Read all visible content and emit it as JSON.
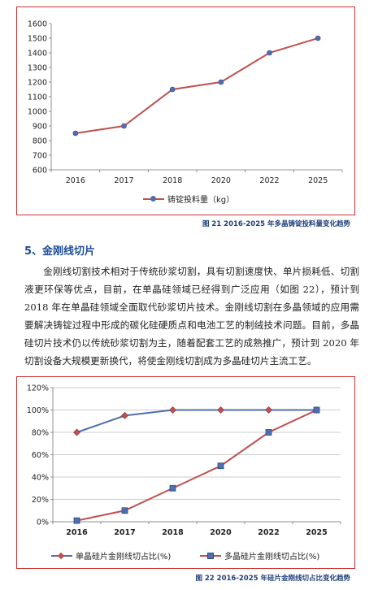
{
  "figure21": {
    "caption": "图 21 2016-2025 年多晶铸锭投料量变化趋势",
    "chart_data": {
      "type": "line",
      "categories": [
        "2016",
        "2017",
        "2018",
        "2020",
        "2022",
        "2025"
      ],
      "series": [
        {
          "name": "铸锭投料量（kg）",
          "values": [
            850,
            900,
            1150,
            1200,
            1400,
            1500
          ],
          "color": "#c0504d",
          "marker_color": "#4f6fb0"
        }
      ],
      "ylim": [
        600,
        1600
      ],
      "yticks": [
        "600",
        "700",
        "800",
        "900",
        "1000",
        "1100",
        "1200",
        "1300",
        "1400",
        "1500",
        "1600"
      ],
      "grid": false,
      "legend": "bottom"
    }
  },
  "section": {
    "title": "5、金刚线切片",
    "paragraph": "金刚线切割技术相对于传统砂浆切割，具有切割速度快、单片损耗低、切割液更环保等优点，目前，在单晶硅领域已经得到广泛应用（如图 22），预计到 2018 年在单晶硅领域全面取代砂浆切片技术。金刚线切割在多晶领域的应用需要解决铸锭过程中形成的碳化硅硬质点和电池工艺的制绒技术问题。目前，多晶硅切片技术仍以传统砂浆切割为主，随着配套工艺的成熟推广，预计到 2020 年切割设备大规模更新换代，将使金刚线切割成为多晶硅切片主流工艺。"
  },
  "figure22": {
    "caption": "图 22 2016-2025 年硅片金刚线切占比变化趋势",
    "chart_data": {
      "type": "line",
      "categories": [
        "2016",
        "2017",
        "2018",
        "2020",
        "2022",
        "2025"
      ],
      "series": [
        {
          "name": "单晶硅片金刚线切占比(%)",
          "values": [
            80,
            95,
            100,
            100,
            100,
            100
          ],
          "color": "#4f6fb0",
          "marker": "diamond",
          "marker_color": "#c0504d"
        },
        {
          "name": "多晶硅片金刚线切占比(%)",
          "values": [
            1,
            10,
            30,
            50,
            80,
            100
          ],
          "color": "#c0504d",
          "marker": "square",
          "marker_color": "#4f6fb0"
        }
      ],
      "ylim": [
        0,
        120
      ],
      "yticks": [
        "0%",
        "20%",
        "40%",
        "60%",
        "80%",
        "100%",
        "120%"
      ],
      "grid": true,
      "legend": "bottom"
    }
  }
}
